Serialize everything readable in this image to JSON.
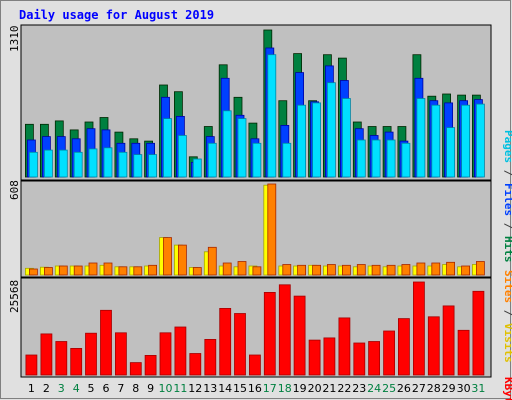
{
  "chart_data": {
    "type": "bar",
    "title": "Daily usage for August 2019",
    "categories": [
      "1",
      "2",
      "3",
      "4",
      "5",
      "6",
      "7",
      "8",
      "9",
      "10",
      "11",
      "12",
      "13",
      "14",
      "15",
      "16",
      "17",
      "18",
      "19",
      "20",
      "21",
      "22",
      "23",
      "24",
      "25",
      "26",
      "27",
      "28",
      "29",
      "30",
      "31"
    ],
    "weekend_days": [
      "3",
      "4",
      "10",
      "11",
      "17",
      "18",
      "24",
      "25",
      "31"
    ],
    "panels": [
      {
        "id": "top",
        "ymax_label": "1310",
        "ylim": [
          0,
          1310
        ],
        "legend": [
          "Pages",
          "Files",
          "Hits"
        ],
        "series": [
          {
            "name": "Hits",
            "color": "#008040",
            "values": [
              470,
              470,
              500,
              420,
              490,
              530,
              400,
              340,
              320,
              820,
              760,
              180,
              450,
              1000,
              710,
              480,
              1310,
              680,
              1100,
              680,
              1090,
              1060,
              490,
              450,
              450,
              450,
              1090,
              720,
              740,
              730,
              730
            ]
          },
          {
            "name": "Files",
            "color": "#0040ff",
            "values": [
              330,
              360,
              360,
              340,
              430,
              420,
              300,
              300,
              300,
              710,
              540,
              130,
              360,
              880,
              550,
              340,
              1150,
              460,
              930,
              670,
              990,
              860,
              430,
              370,
              400,
              320,
              880,
              680,
              660,
              680,
              690
            ]
          },
          {
            "name": "Pages",
            "color": "#00e0ff",
            "values": [
              220,
              240,
              240,
              220,
              250,
              260,
              220,
              200,
              200,
              520,
              370,
              160,
              300,
              590,
              520,
              300,
              1090,
              300,
              640,
              660,
              840,
              700,
              330,
              330,
              330,
              300,
              700,
              640,
              440,
              640,
              650
            ]
          }
        ]
      },
      {
        "id": "middle",
        "ymax_label": "608",
        "ylim": [
          0,
          608
        ],
        "legend": [
          "Sites",
          "Visits"
        ],
        "series": [
          {
            "name": "Visits",
            "color": "#ffff00",
            "values": [
              45,
              52,
              60,
              60,
              60,
              65,
              55,
              55,
              60,
              250,
              200,
              50,
              155,
              60,
              55,
              60,
              600,
              60,
              60,
              65,
              60,
              60,
              55,
              60,
              55,
              60,
              60,
              60,
              70,
              55,
              70
            ]
          },
          {
            "name": "Sites",
            "color": "#ff8000",
            "values": [
              40,
              50,
              60,
              60,
              80,
              80,
              55,
              55,
              65,
              250,
              200,
              50,
              185,
              80,
              90,
              55,
              608,
              70,
              65,
              65,
              70,
              65,
              70,
              65,
              65,
              70,
              80,
              80,
              85,
              60,
              90
            ]
          }
        ]
      },
      {
        "id": "bottom",
        "ymax_label": "25568",
        "ylim": [
          0,
          25568
        ],
        "legend": [
          "KBytes"
        ],
        "series": [
          {
            "name": "KBytes",
            "color": "#ff0000",
            "values": [
              5500,
              11300,
              9200,
              7300,
              11500,
              17800,
              11600,
              3400,
              5400,
              11600,
              13200,
              5900,
              9800,
              18300,
              16900,
              5500,
              22700,
              24800,
              21700,
              9600,
              10200,
              15700,
              8800,
              9200,
              12100,
              15500,
              25568,
              16000,
              19000,
              12300,
              23000
            ]
          }
        ]
      }
    ]
  }
}
